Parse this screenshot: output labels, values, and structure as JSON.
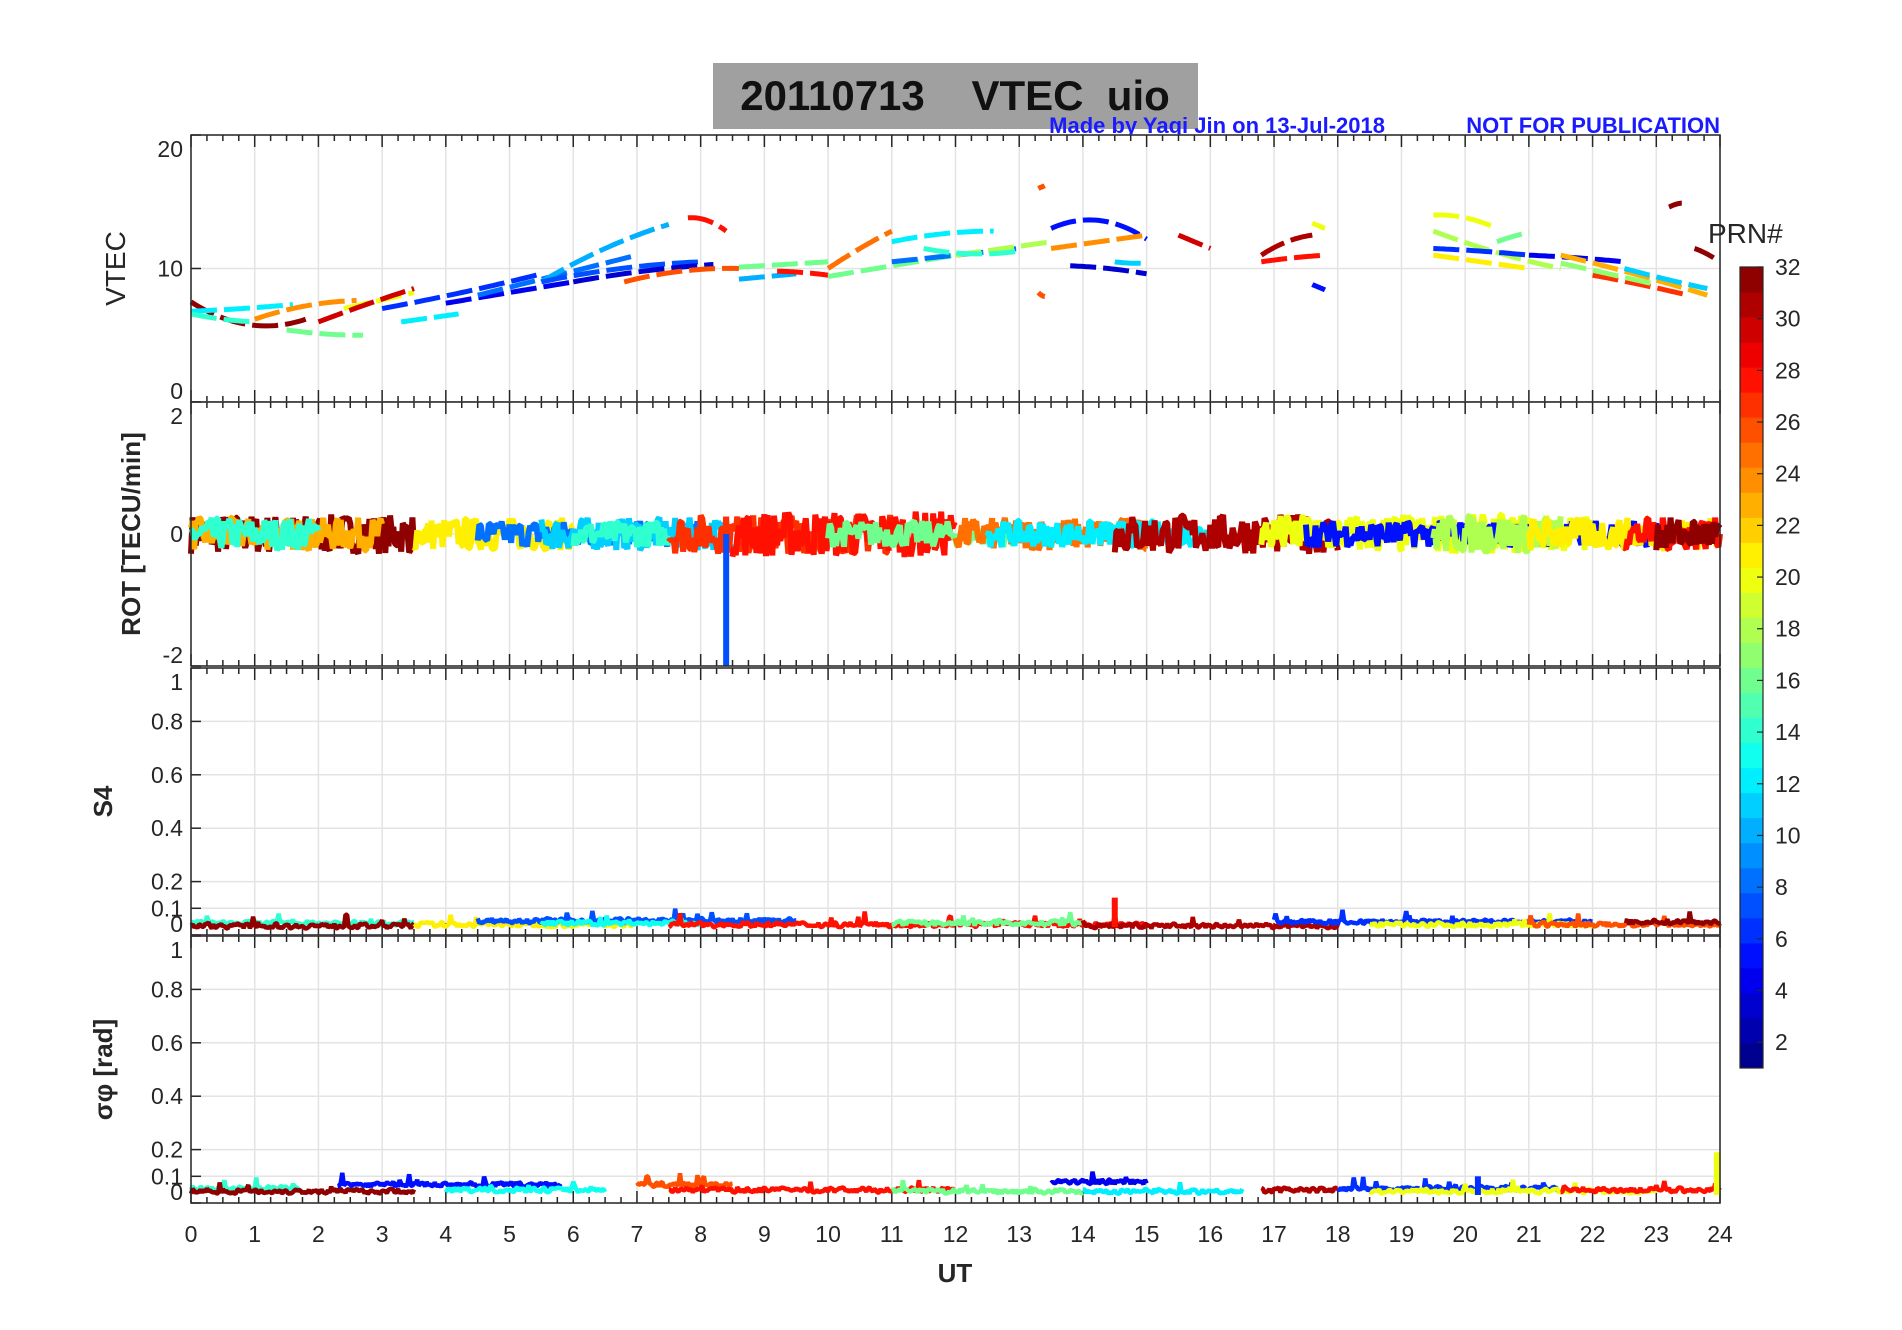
{
  "chart_data": {
    "type": "line",
    "title": "20110713    VTEC  uio",
    "credit": "Made by Yaqi Jin on 13-Jul-2018",
    "notice": "NOT FOR PUBLICATION",
    "xlabel": "UT",
    "xlim": [
      0,
      24
    ],
    "xticks": [
      "0",
      "1",
      "2",
      "3",
      "4",
      "5",
      "6",
      "7",
      "8",
      "9",
      "10",
      "11",
      "12",
      "13",
      "14",
      "15",
      "16",
      "17",
      "18",
      "19",
      "20",
      "21",
      "22",
      "23",
      "24"
    ],
    "colorbar": {
      "label": "PRN#",
      "range": [
        1,
        32
      ],
      "levels": 32,
      "colormap": "jet",
      "ticks": [
        "2",
        "4",
        "6",
        "8",
        "10",
        "12",
        "14",
        "16",
        "18",
        "20",
        "22",
        "24",
        "26",
        "28",
        "30",
        "32"
      ]
    },
    "panels": [
      {
        "id": "vtec",
        "ylabel": "VTEC",
        "ylim": [
          0,
          20
        ],
        "yticks": [
          "0",
          "10",
          "20"
        ],
        "segments": [
          {
            "prn": 32,
            "t": [
              0,
              1,
              1.8
            ],
            "v": [
              7.5,
              5.8,
              6.2
            ]
          },
          {
            "prn": 12,
            "t": [
              0,
              0.8,
              1.6
            ],
            "v": [
              6.8,
              7.0,
              7.3
            ]
          },
          {
            "prn": 14,
            "t": [
              0,
              0.5,
              1.0
            ],
            "v": [
              6.6,
              6.2,
              6.0
            ]
          },
          {
            "prn": 24,
            "t": [
              1.0,
              1.8,
              2.6
            ],
            "v": [
              6.2,
              7.2,
              7.6
            ]
          },
          {
            "prn": 20,
            "t": [
              2.4,
              3.0,
              3.5
            ],
            "v": [
              7.0,
              7.6,
              8.2
            ]
          },
          {
            "prn": 30,
            "t": [
              2.0,
              2.8,
              3.5
            ],
            "v": [
              6.0,
              7.3,
              8.5
            ]
          },
          {
            "prn": 16,
            "t": [
              1.5,
              2.1,
              2.7
            ],
            "v": [
              5.4,
              5.1,
              5.0
            ]
          },
          {
            "prn": 12,
            "t": [
              3.3,
              3.8,
              4.2
            ],
            "v": [
              6.0,
              6.3,
              6.6
            ]
          },
          {
            "prn": 6,
            "t": [
              3.0,
              4.3,
              5.5
            ],
            "v": [
              7.0,
              8.2,
              9.6
            ]
          },
          {
            "prn": 4,
            "t": [
              4.0,
              5.0,
              6.0
            ],
            "v": [
              7.4,
              8.2,
              9.0
            ]
          },
          {
            "prn": 8,
            "t": [
              4.5,
              5.8,
              7.0
            ],
            "v": [
              8.0,
              9.5,
              11.0
            ]
          },
          {
            "prn": 10,
            "t": [
              5.5,
              6.6,
              7.5
            ],
            "v": [
              9.0,
              11.5,
              13.3
            ]
          },
          {
            "prn": 7,
            "t": [
              5.5,
              6.8,
              8.0
            ],
            "v": [
              9.0,
              10.0,
              10.5
            ]
          },
          {
            "prn": 3,
            "t": [
              6.0,
              7.0,
              8.2
            ],
            "v": [
              9.0,
              9.8,
              10.3
            ]
          },
          {
            "prn": 26,
            "t": [
              6.8,
              7.8,
              8.6
            ],
            "v": [
              9.0,
              9.8,
              10.0
            ]
          },
          {
            "prn": 28,
            "t": [
              7.8,
              8.1,
              8.4
            ],
            "v": [
              13.8,
              13.6,
              12.8
            ]
          },
          {
            "prn": 10,
            "t": [
              8.6,
              9.0,
              9.5
            ],
            "v": [
              9.2,
              9.4,
              9.6
            ]
          },
          {
            "prn": 16,
            "t": [
              8.6,
              9.3,
              10.0
            ],
            "v": [
              10.1,
              10.3,
              10.5
            ]
          },
          {
            "prn": 28,
            "t": [
              9.2,
              9.6,
              10.0
            ],
            "v": [
              9.8,
              9.7,
              9.5
            ]
          },
          {
            "prn": 25,
            "t": [
              10.0,
              10.5,
              11.0
            ],
            "v": [
              10.0,
              11.5,
              12.8
            ]
          },
          {
            "prn": 16,
            "t": [
              10.0,
              11.0,
              12.0
            ],
            "v": [
              9.4,
              10.2,
              11.0
            ]
          },
          {
            "prn": 12,
            "t": [
              11.0,
              11.8,
              12.6
            ],
            "v": [
              12.0,
              12.6,
              12.8
            ]
          },
          {
            "prn": 8,
            "t": [
              11.0,
              12.0,
              13.0
            ],
            "v": [
              10.5,
              11.0,
              11.5
            ]
          },
          {
            "prn": 18,
            "t": [
              12.0,
              12.8,
              13.5
            ],
            "v": [
              11.0,
              11.5,
              12.0
            ]
          },
          {
            "prn": 14,
            "t": [
              11.5,
              12.2,
              13.0
            ],
            "v": [
              11.5,
              11.1,
              11.3
            ]
          },
          {
            "prn": 5,
            "t": [
              13.5,
              14.2,
              15.0
            ],
            "v": [
              13.0,
              13.6,
              12.2
            ]
          },
          {
            "prn": 3,
            "t": [
              13.8,
              14.4,
              15.0
            ],
            "v": [
              10.2,
              10.0,
              9.6
            ]
          },
          {
            "prn": 24,
            "t": [
              13.5,
              14.2,
              15.0
            ],
            "v": [
              11.5,
              12.0,
              12.5
            ]
          },
          {
            "prn": 11,
            "t": [
              14.5,
              14.8,
              15.0
            ],
            "v": [
              10.5,
              10.4,
              10.4
            ]
          },
          {
            "prn": 26,
            "t": [
              13.3,
              13.35,
              13.4
            ],
            "v": [
              16.0,
              16.1,
              16.2
            ]
          },
          {
            "prn": 26,
            "t": [
              13.3,
              13.35,
              13.4
            ],
            "v": [
              8.2,
              8.0,
              7.9
            ]
          },
          {
            "prn": 30,
            "t": [
              15.5,
              15.7,
              16.0
            ],
            "v": [
              12.5,
              12.0,
              11.5
            ]
          },
          {
            "prn": 31,
            "t": [
              16.8,
              17.2,
              17.6
            ],
            "v": [
              11.0,
              12.0,
              12.5
            ]
          },
          {
            "prn": 28,
            "t": [
              16.8,
              17.3,
              17.8
            ],
            "v": [
              10.5,
              10.8,
              11.0
            ]
          },
          {
            "prn": 20,
            "t": [
              17.6,
              17.7,
              17.8
            ],
            "v": [
              13.4,
              13.2,
              13.0
            ]
          },
          {
            "prn": 5,
            "t": [
              17.6,
              17.7,
              17.8
            ],
            "v": [
              8.8,
              8.6,
              8.4
            ]
          },
          {
            "prn": 20,
            "t": [
              19.5,
              20.0,
              20.5
            ],
            "v": [
              14.0,
              13.8,
              13.0
            ]
          },
          {
            "prn": 18,
            "t": [
              19.5,
              20.5,
              21.5
            ],
            "v": [
              12.8,
              11.2,
              10.0
            ]
          },
          {
            "prn": 6,
            "t": [
              19.5,
              20.2,
              21.0
            ],
            "v": [
              11.5,
              11.3,
              11.0
            ]
          },
          {
            "prn": 21,
            "t": [
              19.5,
              20.3,
              21.0
            ],
            "v": [
              11.0,
              10.5,
              10.0
            ]
          },
          {
            "prn": 16,
            "t": [
              20.5,
              20.8,
              21.0
            ],
            "v": [
              12.0,
              12.4,
              12.7
            ]
          },
          {
            "prn": 4,
            "t": [
              21.0,
              21.8,
              22.5
            ],
            "v": [
              11.0,
              10.8,
              10.5
            ]
          },
          {
            "prn": 23,
            "t": [
              21.5,
              22.6,
              23.8
            ],
            "v": [
              11.0,
              9.6,
              8.0
            ]
          },
          {
            "prn": 27,
            "t": [
              22.0,
              22.8,
              23.5
            ],
            "v": [
              9.5,
              8.8,
              8.0
            ]
          },
          {
            "prn": 11,
            "t": [
              22.5,
              23.2,
              23.8
            ],
            "v": [
              10.0,
              9.2,
              8.5
            ]
          },
          {
            "prn": 17,
            "t": [
              21.5,
              22.3,
              23.0
            ],
            "v": [
              10.4,
              9.6,
              8.8
            ]
          },
          {
            "prn": 32,
            "t": [
              23.2,
              23.3,
              23.4
            ],
            "v": [
              14.6,
              14.8,
              14.9
            ]
          },
          {
            "prn": 32,
            "t": [
              23.6,
              23.75,
              23.9
            ],
            "v": [
              11.5,
              11.2,
              10.8
            ]
          }
        ]
      },
      {
        "id": "rot",
        "ylabel": "ROT [TECU/min]",
        "ylim": [
          -2,
          2
        ],
        "yticks": [
          "-2",
          "0",
          "2"
        ],
        "segments": [
          {
            "prn": 32,
            "t0": 0,
            "t1": 3.5,
            "amp": 0.3
          },
          {
            "prn": 23,
            "t0": 0,
            "t1": 3,
            "amp": 0.25
          },
          {
            "prn": 14,
            "t0": 0,
            "t1": 2,
            "amp": 0.25
          },
          {
            "prn": 21,
            "t0": 3.5,
            "t1": 6,
            "amp": 0.25
          },
          {
            "prn": 8,
            "t0": 4.5,
            "t1": 8,
            "amp": 0.2
          },
          {
            "prn": 11,
            "t0": 5.5,
            "t1": 8.5,
            "amp": 0.25
          },
          {
            "prn": 14,
            "t0": 6,
            "t1": 7.5,
            "amp": 0.2
          },
          {
            "prn": 27,
            "t0": 7.5,
            "t1": 11,
            "amp": 0.3
          },
          {
            "prn": 28,
            "t0": 8.5,
            "t1": 12,
            "amp": 0.35
          },
          {
            "prn": 16,
            "t0": 10,
            "t1": 13,
            "amp": 0.2
          },
          {
            "prn": 25,
            "t0": 12,
            "t1": 15,
            "amp": 0.25
          },
          {
            "prn": 12,
            "t0": 12.5,
            "t1": 16,
            "amp": 0.2
          },
          {
            "prn": 31,
            "t0": 14.5,
            "t1": 18,
            "amp": 0.3
          },
          {
            "prn": 20,
            "t0": 16.8,
            "t1": 22,
            "amp": 0.3
          },
          {
            "prn": 5,
            "t0": 17.5,
            "t1": 23,
            "amp": 0.2
          },
          {
            "prn": 18,
            "t0": 19.5,
            "t1": 21.5,
            "amp": 0.3
          },
          {
            "prn": 21,
            "t0": 21,
            "t1": 24,
            "amp": 0.25
          },
          {
            "prn": 28,
            "t0": 22.5,
            "t1": 24,
            "amp": 0.25
          },
          {
            "prn": 32,
            "t0": 23,
            "t1": 24,
            "amp": 0.25
          }
        ],
        "spikes": [
          {
            "prn": 7,
            "t": 8.4,
            "v": -2
          }
        ]
      },
      {
        "id": "s4",
        "ylabel": "S4",
        "ylim": [
          0,
          1
        ],
        "yticks": [
          "0",
          "0.1",
          "0.2",
          "0.4",
          "0.6",
          "0.8",
          "1"
        ],
        "segments": [
          {
            "prn": 14,
            "t0": 0,
            "t1": 3.5,
            "base": 0.04
          },
          {
            "prn": 32,
            "t0": 0,
            "t1": 3.5,
            "base": 0.03
          },
          {
            "prn": 21,
            "t0": 3.5,
            "t1": 7,
            "base": 0.035
          },
          {
            "prn": 7,
            "t0": 4.5,
            "t1": 9.5,
            "base": 0.05
          },
          {
            "prn": 13,
            "t0": 5.5,
            "t1": 8,
            "base": 0.04
          },
          {
            "prn": 28,
            "t0": 7.5,
            "t1": 15,
            "base": 0.035
          },
          {
            "prn": 16,
            "t0": 11,
            "t1": 14,
            "base": 0.04
          },
          {
            "prn": 31,
            "t0": 14,
            "t1": 18,
            "base": 0.03
          },
          {
            "prn": 6,
            "t0": 17,
            "t1": 22,
            "base": 0.045
          },
          {
            "prn": 20,
            "t0": 18.5,
            "t1": 22,
            "base": 0.035
          },
          {
            "prn": 26,
            "t0": 21,
            "t1": 24,
            "base": 0.035
          },
          {
            "prn": 32,
            "t0": 22.5,
            "t1": 24,
            "base": 0.045
          }
        ],
        "spikes": [
          {
            "prn": 28,
            "t": 14.5,
            "v": 0.14
          }
        ]
      },
      {
        "id": "sigma",
        "ylabel": "σφ [rad]",
        "ylabel_main": "σ",
        "ylabel_sub": "φ",
        "ylabel_unit": "[rad]",
        "ylim": [
          0,
          1
        ],
        "yticks": [
          "0",
          "0.1",
          "0.2",
          "0.4",
          "0.6",
          "0.8",
          "1"
        ],
        "segments": [
          {
            "prn": 14,
            "t0": 0,
            "t1": 1.7,
            "base": 0.05
          },
          {
            "prn": 32,
            "t0": 0,
            "t1": 3.5,
            "base": 0.04
          },
          {
            "prn": 5,
            "t0": 2.3,
            "t1": 5.8,
            "base": 0.065
          },
          {
            "prn": 13,
            "t0": 4,
            "t1": 6.5,
            "base": 0.045
          },
          {
            "prn": 26,
            "t0": 7,
            "t1": 8.5,
            "base": 0.065
          },
          {
            "prn": 28,
            "t0": 7.5,
            "t1": 12,
            "base": 0.045
          },
          {
            "prn": 16,
            "t0": 11,
            "t1": 14,
            "base": 0.04
          },
          {
            "prn": 4,
            "t0": 13.5,
            "t1": 15,
            "base": 0.075
          },
          {
            "prn": 12,
            "t0": 14,
            "t1": 16.5,
            "base": 0.04
          },
          {
            "prn": 31,
            "t0": 16.8,
            "t1": 18,
            "base": 0.045
          },
          {
            "prn": 6,
            "t0": 18,
            "t1": 21.5,
            "base": 0.05
          },
          {
            "prn": 20,
            "t0": 18.5,
            "t1": 23,
            "base": 0.04
          },
          {
            "prn": 28,
            "t0": 21.5,
            "t1": 24,
            "base": 0.045
          }
        ],
        "spikes": [
          {
            "prn": 6,
            "t": 20.2,
            "v": 0.1
          },
          {
            "prn": 20,
            "t": 23.95,
            "v": 0.19
          }
        ]
      }
    ]
  }
}
